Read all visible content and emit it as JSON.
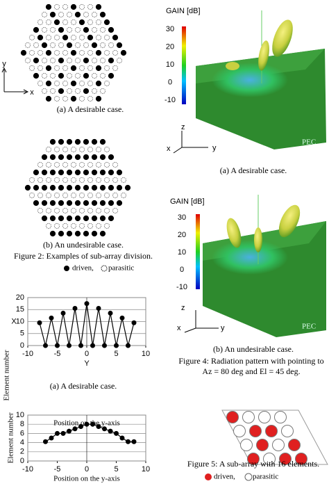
{
  "figure2": {
    "panel_a": {
      "axis_y": "y",
      "axis_x": "x",
      "caption": "(a) A desirable case."
    },
    "panel_b": {
      "caption": "(b) An undesirable case."
    },
    "caption": "Figure 2: Examples of sub-array division.",
    "legend": {
      "driven": "driven,",
      "parasitic": "parasitic"
    }
  },
  "figure3": {
    "outer_label": "Element number",
    "caption_a": "(a) A desirable case."
  },
  "chart_data": [
    {
      "type": "line",
      "color": "#000000",
      "x": [
        -8,
        -7,
        -6,
        -5,
        -4,
        -3,
        -2,
        -1,
        0,
        1,
        2,
        3,
        4,
        5,
        6,
        7,
        8
      ],
      "values": [
        9.5,
        0,
        11.5,
        0,
        13.5,
        0,
        15.5,
        0,
        17.5,
        0,
        15.5,
        0,
        13.5,
        0,
        11.5,
        0,
        9.5
      ],
      "xlim": [
        -10,
        10
      ],
      "ylim": [
        0,
        20
      ],
      "xticks": [
        -10,
        -5,
        0,
        5,
        10
      ],
      "yticks": [
        0,
        5,
        10,
        15,
        20
      ],
      "xlabel": "Y",
      "ylabel": "X",
      "grid": true
    },
    {
      "type": "line",
      "color": "#000000",
      "title": "Position on the y-axis",
      "x": [
        -7,
        -6,
        -5,
        -4,
        -3,
        -2,
        -1,
        0,
        1,
        2,
        3,
        4,
        5,
        6,
        7,
        8
      ],
      "values": [
        4.2,
        5,
        6,
        6,
        6.5,
        7,
        7.5,
        8,
        8,
        7.5,
        7,
        6.5,
        6,
        5,
        4.2,
        4.2
      ],
      "xlim": [
        -10,
        10
      ],
      "ylim": [
        0,
        10
      ],
      "xticks": [
        -10,
        -5,
        0,
        5,
        10
      ],
      "yticks": [
        0,
        2,
        4,
        6,
        8,
        10
      ],
      "xlabel": "Position on the y-axis",
      "ylabel": "Element number",
      "grid": true
    }
  ],
  "figure4": {
    "panel_a": {
      "gain_label": "GAIN [dB]",
      "gain_ticks": [
        30,
        20,
        10,
        0,
        -10
      ],
      "axes": [
        "z",
        "x",
        "y"
      ],
      "plane": "PEC",
      "caption": "(a) A desirable case."
    },
    "panel_b": {
      "gain_label": "GAIN [dB]",
      "gain_ticks": [
        30,
        20,
        10,
        0,
        -10
      ],
      "axes": [
        "z",
        "x",
        "y"
      ],
      "plane": "PEC",
      "caption": "(b) An undesirable case."
    },
    "caption": "Figure 4: Radiation pattern with pointing to Az = 80 deg and El = 45 deg."
  },
  "figure5": {
    "caption": "Figure 5: A sub-array with 16 elements.",
    "legend": {
      "driven": "driven,",
      "parasitic": "parasitic"
    }
  }
}
